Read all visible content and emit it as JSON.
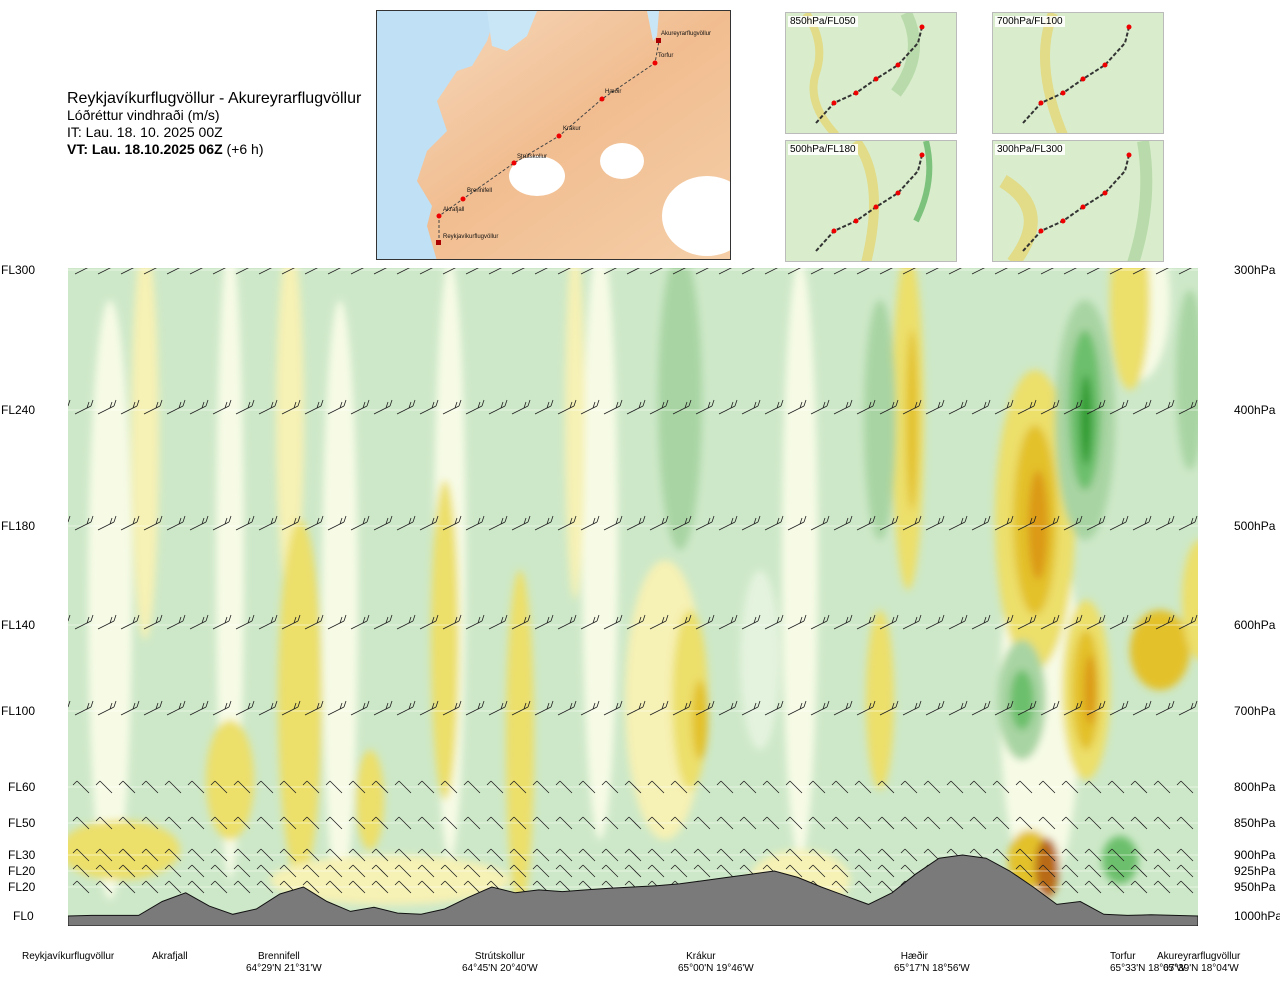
{
  "header": {
    "route": "Reykjavíkurflugvöllur - Akureyrarflugvöllur",
    "variable": "Lóðréttur vindhraði (m/s)",
    "issue_time": "IT: Lau. 18. 10. 2025 00Z",
    "valid_label": "VT: Lau. 18.10.2025 06Z",
    "valid_offset": " (+6 h)"
  },
  "map": {
    "waypoints": [
      "Akureyrarflugvöllur",
      "Torfur",
      "Hæðir",
      "Krákur",
      "Strútskollur",
      "Brennifell",
      "Akrafjall",
      "Reykjavíkurflugvöllur"
    ]
  },
  "thumbnails": [
    {
      "label": "850hPa/FL050"
    },
    {
      "label": "700hPa/FL100"
    },
    {
      "label": "500hPa/FL180"
    },
    {
      "label": "300hPa/FL300"
    }
  ],
  "chart_data": {
    "type": "heatmap",
    "title": "Reykjavíkurflugvöllur - Akureyrarflugvöllur",
    "variable": "Lóðréttur vindhraði (m/s)",
    "y_left_levels": [
      "FL300",
      "FL240",
      "FL180",
      "FL140",
      "FL100",
      "FL60",
      "FL50",
      "FL30",
      "FL20",
      "FL20",
      "FL0"
    ],
    "y_right_levels": [
      "300hPa",
      "400hPa",
      "500hPa",
      "600hPa",
      "700hPa",
      "800hPa",
      "850hPa",
      "900hPa",
      "925hPa",
      "950hPa",
      "1000hPa"
    ],
    "pressure_hPa": [
      300,
      400,
      500,
      600,
      700,
      800,
      850,
      900,
      925,
      950,
      1000
    ],
    "stations": [
      {
        "name": "Reykjavíkurflugvöllur",
        "coords": "",
        "x": 0.0
      },
      {
        "name": "Akrafjall",
        "coords": "",
        "x": 0.09
      },
      {
        "name": "Brennifell",
        "coords": "64°29'N 21°31'W",
        "x": 0.18
      },
      {
        "name": "Strútskollur",
        "coords": "64°45'N 20°40'W",
        "x": 0.38
      },
      {
        "name": "Krákur",
        "coords": "65°00'N 19°46'W",
        "x": 0.55
      },
      {
        "name": "Hæðir",
        "coords": "65°17'N 18°56'W",
        "x": 0.73
      },
      {
        "name": "Torfur",
        "coords": "65°33'N 18°07'W",
        "x": 0.92
      },
      {
        "name": "Akureyrarflugvöllur",
        "coords": "65°39'N 18°04'W",
        "x": 1.0
      }
    ],
    "terrain_profile_hPa": [
      1000,
      999,
      999,
      999,
      975,
      960,
      983,
      997,
      988,
      962,
      950,
      975,
      992,
      985,
      995,
      997,
      988,
      968,
      950,
      960,
      955,
      958,
      955,
      952,
      950,
      948,
      945,
      940,
      935,
      930,
      925,
      935,
      950,
      965,
      980,
      960,
      930,
      905,
      900,
      905,
      925,
      950,
      980,
      975,
      997,
      999,
      998,
      999,
      1000
    ],
    "colors": {
      "strong_down": "#2e9b2e",
      "down_3": "#6cbf6c",
      "down_2": "#a8d4a3",
      "down_1": "#cde8c8",
      "down_weak": "#e4f3de",
      "neutral": "#f7fbe6",
      "up_weak": "#f6f1b4",
      "up_1": "#ecdf6a",
      "up_2": "#e3c12a",
      "up_3": "#dc9a17",
      "up_4": "#b96b12",
      "terrain": "#7a7a7a"
    }
  }
}
